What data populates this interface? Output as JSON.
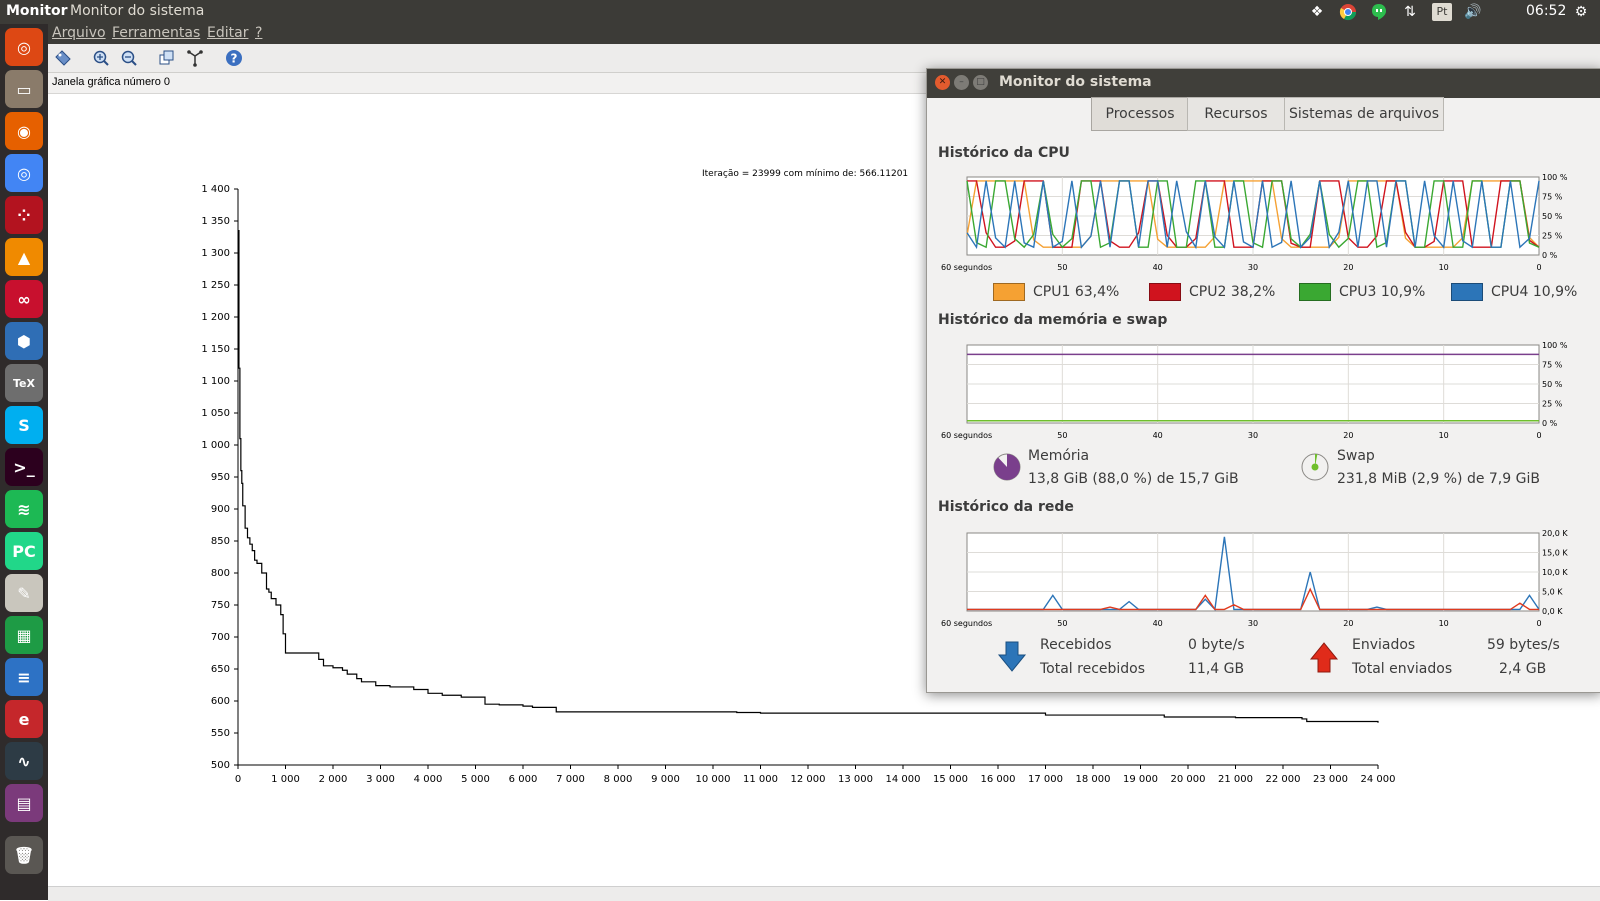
{
  "top_panel": {
    "app_name": "Monitor",
    "window_title": "Monitor do sistema",
    "clock": "06:52",
    "keyboard_layout": "Pt",
    "indicators": [
      "dropbox-icon",
      "chrome-icon",
      "hangouts-icon",
      "network-icon",
      "keyboard-icon",
      "volume-icon",
      "clock",
      "settings-gear-icon"
    ]
  },
  "launcher": {
    "items": [
      {
        "name": "ubuntu-dash",
        "icon": "ubuntu-logo-icon",
        "color": "#dd4814",
        "glyph": "◎"
      },
      {
        "name": "files",
        "icon": "files-icon",
        "color": "#8a7b6a",
        "glyph": "▭"
      },
      {
        "name": "firefox",
        "icon": "firefox-icon",
        "color": "#e66000",
        "glyph": "◉"
      },
      {
        "name": "chrome",
        "icon": "chrome-icon",
        "color": "#4285f4",
        "glyph": "◎"
      },
      {
        "name": "dice",
        "icon": "dice-icon",
        "color": "#b3131f",
        "glyph": "⁘"
      },
      {
        "name": "vlc",
        "icon": "vlc-icon",
        "color": "#f08a00",
        "glyph": "▲"
      },
      {
        "name": "mendeley",
        "icon": "mendeley-icon",
        "color": "#c8102e",
        "glyph": "∞"
      },
      {
        "name": "virtualbox",
        "icon": "virtualbox-icon",
        "color": "#2f6eb5",
        "glyph": "⬢"
      },
      {
        "name": "texmaker",
        "icon": "tex-icon",
        "color": "#6e6e6e",
        "glyph": "TeX"
      },
      {
        "name": "skype",
        "icon": "skype-icon",
        "color": "#00aff0",
        "glyph": "S"
      },
      {
        "name": "terminal",
        "icon": "terminal-icon",
        "color": "#2c001e",
        "glyph": ">_"
      },
      {
        "name": "spotify",
        "icon": "spotify-icon",
        "color": "#1db954",
        "glyph": "≋"
      },
      {
        "name": "pycharm",
        "icon": "pycharm-icon",
        "color": "#21d789",
        "glyph": "PC"
      },
      {
        "name": "text-editor",
        "icon": "text-editor-icon",
        "color": "#c9c6bd",
        "glyph": "✎"
      },
      {
        "name": "calc",
        "icon": "spreadsheet-icon",
        "color": "#1e9b45",
        "glyph": "▦"
      },
      {
        "name": "writer",
        "icon": "document-icon",
        "color": "#2d72c5",
        "glyph": "≡"
      },
      {
        "name": "evince",
        "icon": "pdf-viewer-icon",
        "color": "#c5272b",
        "glyph": "e"
      },
      {
        "name": "system-monitor",
        "icon": "system-monitor-icon",
        "color": "#2d3b45",
        "glyph": "∿"
      },
      {
        "name": "workspaces",
        "icon": "workspace-switcher-icon",
        "color": "#7b3a7b",
        "glyph": "▤"
      },
      {
        "name": "trash",
        "icon": "trash-icon",
        "color": "#5a5753",
        "glyph": "🗑"
      }
    ]
  },
  "scilab": {
    "menu": [
      "Arquivo",
      "Ferramentas",
      "Editar",
      "?"
    ],
    "toolbar_icons": [
      "datatip-icon",
      "zoom-in-icon",
      "zoom-out-icon",
      "rotate-icon",
      "axes-icon",
      "help-icon"
    ],
    "status": "Janela gráfica número 0"
  },
  "chart_data": {
    "type": "line",
    "title": "Iteração = 23999 com mínimo de: 566.11201",
    "xlabel": "",
    "ylabel": "",
    "xlim": [
      0,
      24000
    ],
    "ylim": [
      500,
      1400
    ],
    "x_ticks": [
      "0",
      "1 000",
      "2 000",
      "3 000",
      "4 000",
      "5 000",
      "6 000",
      "7 000",
      "8 000",
      "9 000",
      "10 000",
      "11 000",
      "12 000",
      "13 000",
      "14 000",
      "15 000",
      "16 000",
      "17 000",
      "18 000",
      "19 000",
      "20 000",
      "21 000",
      "22 000",
      "23 000",
      "24 000"
    ],
    "y_ticks": [
      "500",
      "550",
      "600",
      "650",
      "700",
      "750",
      "800",
      "850",
      "900",
      "950",
      "1 000",
      "1 050",
      "1 100",
      "1 150",
      "1 200",
      "1 250",
      "1 300",
      "1 350",
      "1 400"
    ],
    "series": [
      {
        "x": [
          0,
          20,
          40,
          60,
          80,
          100,
          150,
          200,
          250,
          300,
          350,
          400,
          500,
          600,
          650,
          700,
          800,
          900,
          950,
          1000,
          1050,
          1100,
          1700,
          1800,
          2000,
          2200,
          2300,
          2500,
          2600,
          2900,
          3200,
          3700,
          4000,
          4300,
          4700,
          5000,
          5200,
          5500,
          6000,
          6200,
          6700,
          7500,
          10500,
          11000,
          17000,
          19500,
          20000,
          21000,
          22400,
          22500,
          24000
        ],
        "y": [
          1335,
          1120,
          1010,
          960,
          940,
          905,
          870,
          855,
          845,
          835,
          820,
          815,
          800,
          775,
          770,
          760,
          750,
          735,
          705,
          675,
          675,
          675,
          665,
          655,
          652,
          648,
          642,
          635,
          630,
          624,
          622,
          618,
          612,
          609,
          606,
          606,
          595,
          594,
          592,
          590,
          583,
          583,
          582,
          581,
          578,
          575,
          575,
          574,
          572,
          568,
          566
        ]
      }
    ]
  },
  "sysmon": {
    "title": "Monitor do sistema",
    "tabs": [
      "Processos",
      "Recursos",
      "Sistemas de arquivos"
    ],
    "active_tab": "Processos",
    "cpu": {
      "heading": "Histórico da CPU",
      "y_labels": [
        "100 %",
        "75 %",
        "50 %",
        "25 %",
        "0 %"
      ],
      "x_labels": [
        "60 segundos",
        "50",
        "40",
        "30",
        "20",
        "10",
        "0"
      ],
      "legend": [
        {
          "label": "CPU1",
          "value": "63,4%",
          "color": "#f5a133"
        },
        {
          "label": "CPU2",
          "value": "38,2%",
          "color": "#d0131e"
        },
        {
          "label": "CPU3",
          "value": "10,9%",
          "color": "#3aa832"
        },
        {
          "label": "CPU4",
          "value": "10,9%",
          "color": "#2c75b8"
        }
      ]
    },
    "memory": {
      "heading": "Histórico da memória e swap",
      "y_labels": [
        "100 %",
        "75 %",
        "50 %",
        "25 %",
        "0 %"
      ],
      "x_labels": [
        "60 segundos",
        "50",
        "40",
        "30",
        "20",
        "10",
        "0"
      ],
      "mem_label": "Memória",
      "mem_value": "13,8 GiB (88,0 %) de 15,7 GiB",
      "mem_percent": 88.0,
      "mem_color": "#7a3f8c",
      "swap_label": "Swap",
      "swap_value": "231,8 MiB (2,9 %) de 7,9 GiB",
      "swap_percent": 2.9,
      "swap_color": "#6fbf2c"
    },
    "network": {
      "heading": "Histórico da rede",
      "y_labels": [
        "20,0 K",
        "15,0 K",
        "10,0 K",
        "5,0 K",
        "0,0 K"
      ],
      "x_labels": [
        "60 segundos",
        "50",
        "40",
        "30",
        "20",
        "10",
        "0"
      ],
      "received_label": "Recebidos",
      "received_value": "0 byte/s",
      "total_received_label": "Total recebidos",
      "total_received_value": "11,4 GB",
      "sent_label": "Enviados",
      "sent_value": "59 bytes/s",
      "total_sent_label": "Total enviados",
      "total_sent_value": "2,4 GB",
      "received_color": "#2c75b8",
      "sent_color": "#e03a1e"
    }
  }
}
